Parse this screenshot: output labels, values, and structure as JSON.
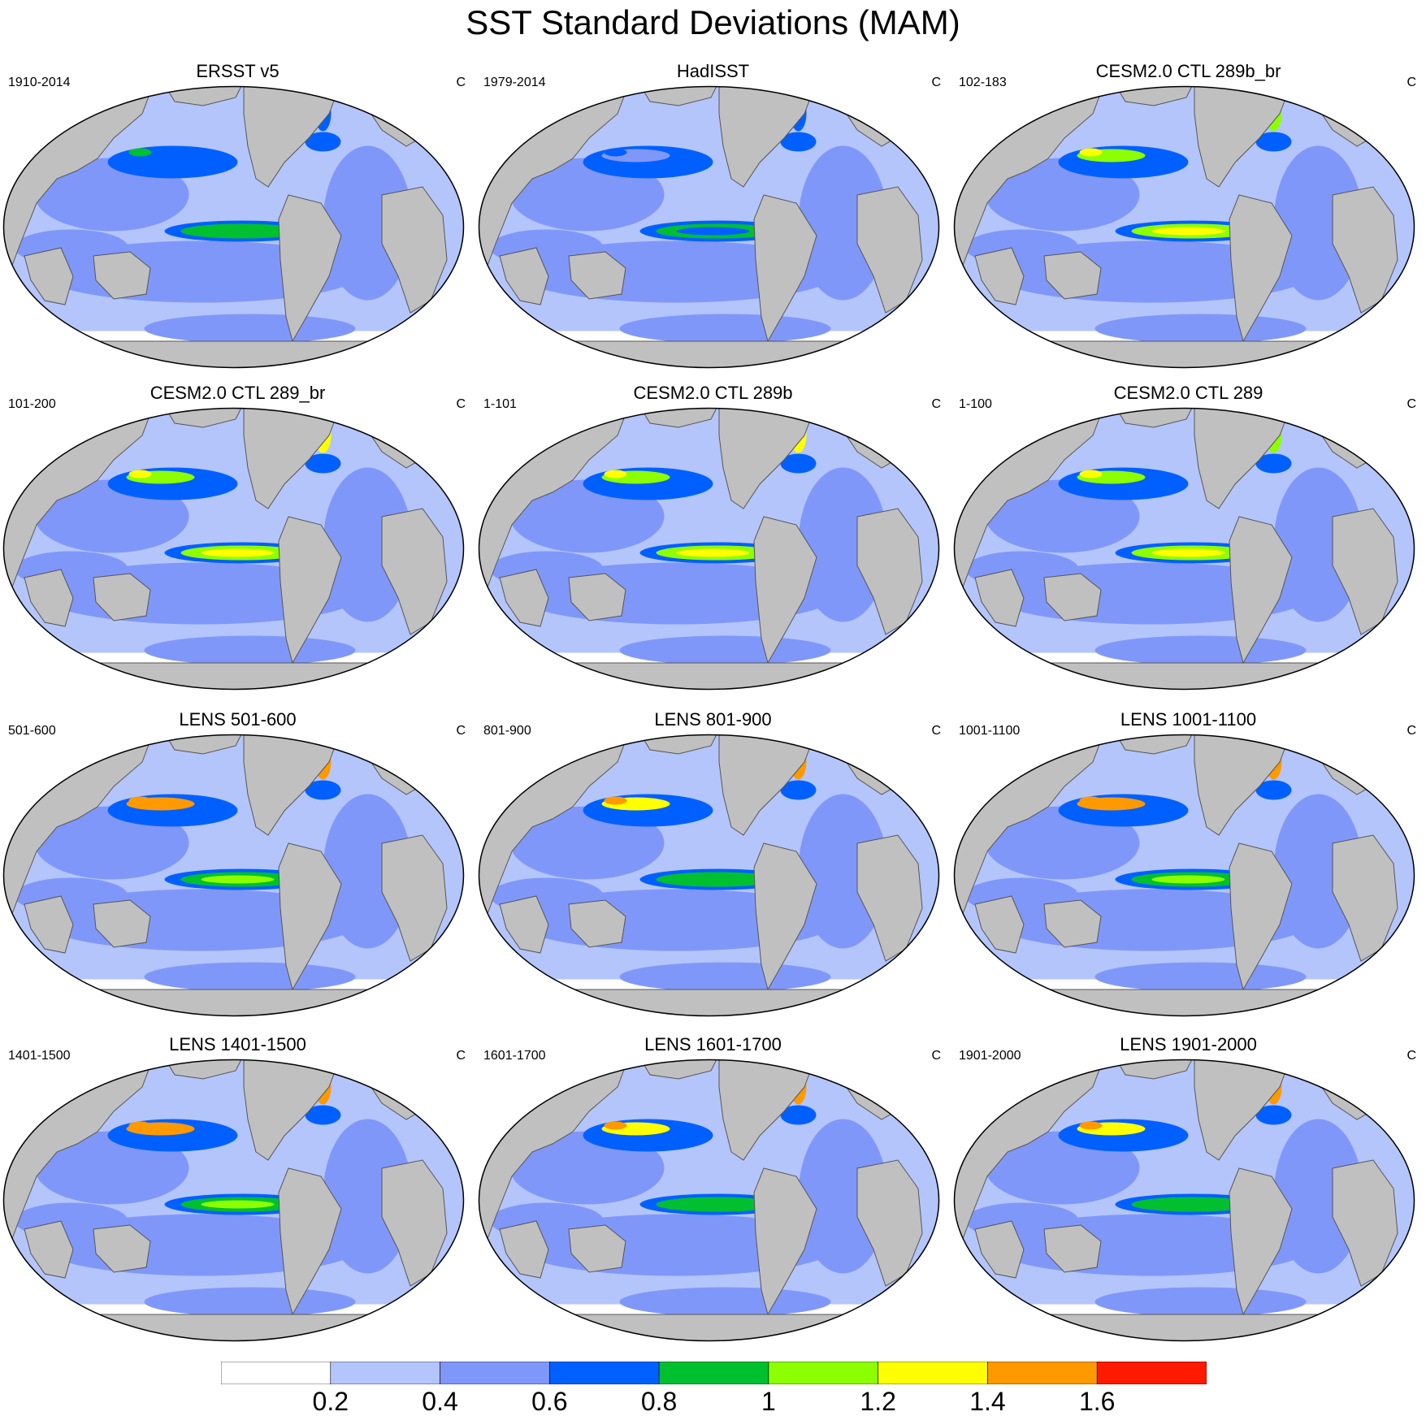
{
  "figure": {
    "title": "SST Standard Deviations (MAM)"
  },
  "panels": [
    {
      "title": "ERSST v5",
      "left": "1910-2014",
      "right": "C",
      "intensity": 0.55,
      "nino": 0.9,
      "north": 0.6
    },
    {
      "title": "HadISST",
      "left": "1979-2014",
      "right": "C",
      "intensity": 0.35,
      "nino": 0.75,
      "north": 0.5
    },
    {
      "title": "CESM2.0 CTL 289b_br",
      "left": "102-183",
      "right": "C",
      "intensity": 0.7,
      "nino": 1.2,
      "north": 1.0
    },
    {
      "title": "CESM2.0 CTL 289_br",
      "left": "101-200",
      "right": "C",
      "intensity": 0.7,
      "nino": 1.3,
      "north": 1.1
    },
    {
      "title": "CESM2.0 CTL 289b",
      "left": "1-101",
      "right": "C",
      "intensity": 0.7,
      "nino": 1.25,
      "north": 1.1
    },
    {
      "title": "CESM2.0 CTL 289",
      "left": "1-100",
      "right": "C",
      "intensity": 0.65,
      "nino": 1.2,
      "north": 1.0
    },
    {
      "title": "LENS 501-600",
      "left": "501-600",
      "right": "C",
      "intensity": 0.55,
      "nino": 1.05,
      "north": 1.4
    },
    {
      "title": "LENS 801-900",
      "left": "801-900",
      "right": "C",
      "intensity": 0.5,
      "nino": 0.95,
      "north": 1.3
    },
    {
      "title": "LENS 1001-1100",
      "left": "1001-1100",
      "right": "C",
      "intensity": 0.5,
      "nino": 1.0,
      "north": 1.4
    },
    {
      "title": "LENS 1401-1500",
      "left": "1401-1500",
      "right": "C",
      "intensity": 0.5,
      "nino": 1.05,
      "north": 1.4
    },
    {
      "title": "LENS 1601-1700",
      "left": "1601-1700",
      "right": "C",
      "intensity": 0.5,
      "nino": 0.95,
      "north": 1.3
    },
    {
      "title": "LENS 1901-2000",
      "left": "1901-2000",
      "right": "C",
      "intensity": 0.5,
      "nino": 0.95,
      "north": 1.35
    }
  ],
  "colorbar": {
    "colors": [
      "#ffffff",
      "#b4c5fc",
      "#8097fa",
      "#0060ff",
      "#00c030",
      "#8cff00",
      "#ffff00",
      "#ff9900",
      "#ff1a00"
    ],
    "labels": [
      "0.2",
      "0.4",
      "0.6",
      "0.8",
      "1",
      "1.2",
      "1.4",
      "1.6"
    ]
  },
  "land_color": "#c0c0c0"
}
